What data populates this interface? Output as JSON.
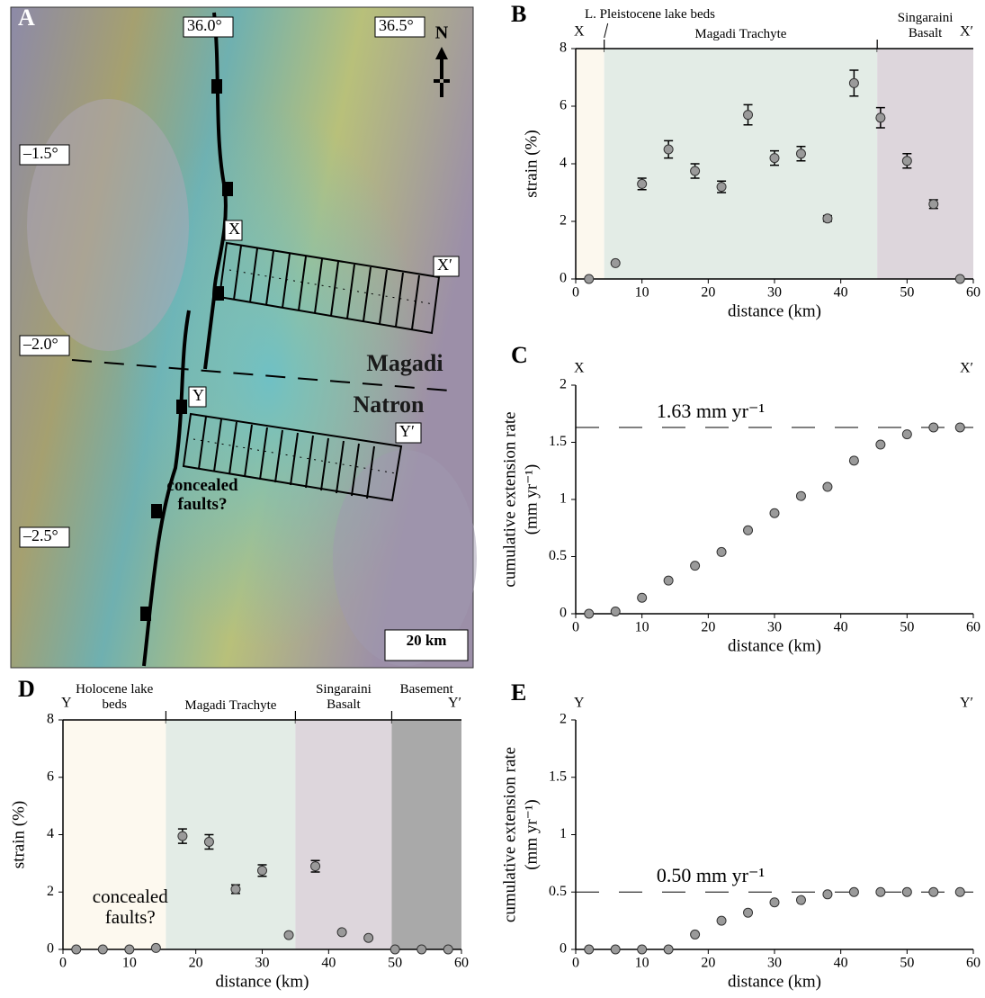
{
  "map": {
    "panel": "A",
    "lon_labels": [
      "36.0°",
      "36.5°"
    ],
    "lat_labels": [
      "–1.5°",
      "–2.0°",
      "–2.5°"
    ],
    "profile_labels": [
      "X",
      "X′",
      "Y",
      "Y′"
    ],
    "basin_labels": [
      "Magadi",
      "Natron"
    ],
    "annotation": "concealed faults?",
    "scale": "20 km",
    "north": "N"
  },
  "chart_data": [
    {
      "type": "scatter",
      "panel": "B",
      "xlabel": "distance (km)",
      "ylabel": [
        "strain (%)"
      ],
      "end_labels": [
        "X",
        "X′"
      ],
      "x": [
        2,
        6,
        10,
        14,
        18,
        22,
        26,
        30,
        34,
        38,
        42,
        46,
        50,
        54,
        58
      ],
      "values": [
        0,
        0.55,
        3.3,
        4.5,
        3.75,
        3.2,
        5.7,
        4.2,
        4.35,
        2.1,
        6.8,
        5.6,
        4.1,
        2.6,
        0
      ],
      "errors": [
        null,
        null,
        0.2,
        0.3,
        0.25,
        0.2,
        0.35,
        0.25,
        0.25,
        0.1,
        0.45,
        0.35,
        0.25,
        0.15,
        null
      ],
      "xlim": [
        0,
        60
      ],
      "ylim": [
        0,
        8
      ],
      "xticks": [
        0,
        10,
        20,
        30,
        40,
        50,
        60
      ],
      "yticks": [
        0,
        2,
        4,
        6,
        8
      ],
      "regions": [
        {
          "label": "L. Pleistocene lake beds",
          "start": 0,
          "end": 4.3,
          "color": "#fcf8ee"
        },
        {
          "label": "Magadi Trachyte",
          "start": 4.3,
          "end": 45.5,
          "color": "#e3ece6"
        },
        {
          "label": "Singaraini Basalt",
          "start": 45.5,
          "end": 60,
          "color": "#ddd6dc"
        }
      ]
    },
    {
      "type": "scatter",
      "panel": "C",
      "xlabel": "distance (km)",
      "ylabel": [
        "cumulative extension rate",
        "(mm yr⁻¹)"
      ],
      "end_labels": [
        "X",
        "X′"
      ],
      "x": [
        2,
        6,
        10,
        14,
        18,
        22,
        26,
        30,
        34,
        38,
        42,
        46,
        50,
        54,
        58
      ],
      "values": [
        0,
        0.02,
        0.14,
        0.29,
        0.42,
        0.54,
        0.73,
        0.88,
        1.03,
        1.11,
        1.34,
        1.48,
        1.57,
        1.63,
        1.63
      ],
      "xlim": [
        0,
        60
      ],
      "ylim": [
        0,
        2
      ],
      "xticks": [
        0,
        10,
        20,
        30,
        40,
        50,
        60
      ],
      "yticks": [
        0,
        0.5,
        1,
        1.5,
        2
      ],
      "reference": {
        "value": 1.63,
        "label": "1.63 mm yr⁻¹"
      }
    },
    {
      "type": "scatter",
      "panel": "D",
      "xlabel": "distance (km)",
      "ylabel": [
        "strain (%)"
      ],
      "end_labels": [
        "Y",
        "Y′"
      ],
      "x": [
        2,
        6,
        10,
        14,
        18,
        22,
        26,
        30,
        34,
        38,
        42,
        46,
        50,
        54,
        58
      ],
      "values": [
        0,
        0,
        0,
        0.05,
        3.95,
        3.75,
        2.1,
        2.75,
        0.5,
        2.9,
        0.6,
        0.4,
        0,
        0,
        0
      ],
      "errors": [
        null,
        null,
        null,
        null,
        0.25,
        0.25,
        0.15,
        0.2,
        null,
        0.2,
        null,
        null,
        null,
        null,
        null
      ],
      "xlim": [
        0,
        60
      ],
      "ylim": [
        0,
        8
      ],
      "xticks": [
        0,
        10,
        20,
        30,
        40,
        50,
        60
      ],
      "yticks": [
        0,
        2,
        4,
        6,
        8
      ],
      "annotation": "concealed faults?",
      "regions": [
        {
          "label": "Holocene lake beds",
          "start": 0,
          "end": 15.5,
          "color": "#fdf9ef"
        },
        {
          "label": "Magadi Trachyte",
          "start": 15.5,
          "end": 35,
          "color": "#e3ece6"
        },
        {
          "label": "Singaraini Basalt",
          "start": 35,
          "end": 49.5,
          "color": "#ddd6dc"
        },
        {
          "label": "Basement",
          "start": 49.5,
          "end": 60,
          "color": "#a9a9a9"
        }
      ]
    },
    {
      "type": "scatter",
      "panel": "E",
      "xlabel": "distance (km)",
      "ylabel": [
        "cumulative extension rate",
        "(mm yr⁻¹)"
      ],
      "end_labels": [
        "Y",
        "Y′"
      ],
      "x": [
        2,
        6,
        10,
        14,
        18,
        22,
        26,
        30,
        34,
        38,
        42,
        46,
        50,
        54,
        58
      ],
      "values": [
        0,
        0,
        0,
        0,
        0.13,
        0.25,
        0.32,
        0.41,
        0.43,
        0.48,
        0.5,
        0.5,
        0.5,
        0.5,
        0.5
      ],
      "xlim": [
        0,
        60
      ],
      "ylim": [
        0,
        2
      ],
      "xticks": [
        0,
        10,
        20,
        30,
        40,
        50,
        60
      ],
      "yticks": [
        0,
        0.5,
        1,
        1.5,
        2
      ],
      "reference": {
        "value": 0.5,
        "label": "0.50 mm yr⁻¹"
      }
    }
  ]
}
